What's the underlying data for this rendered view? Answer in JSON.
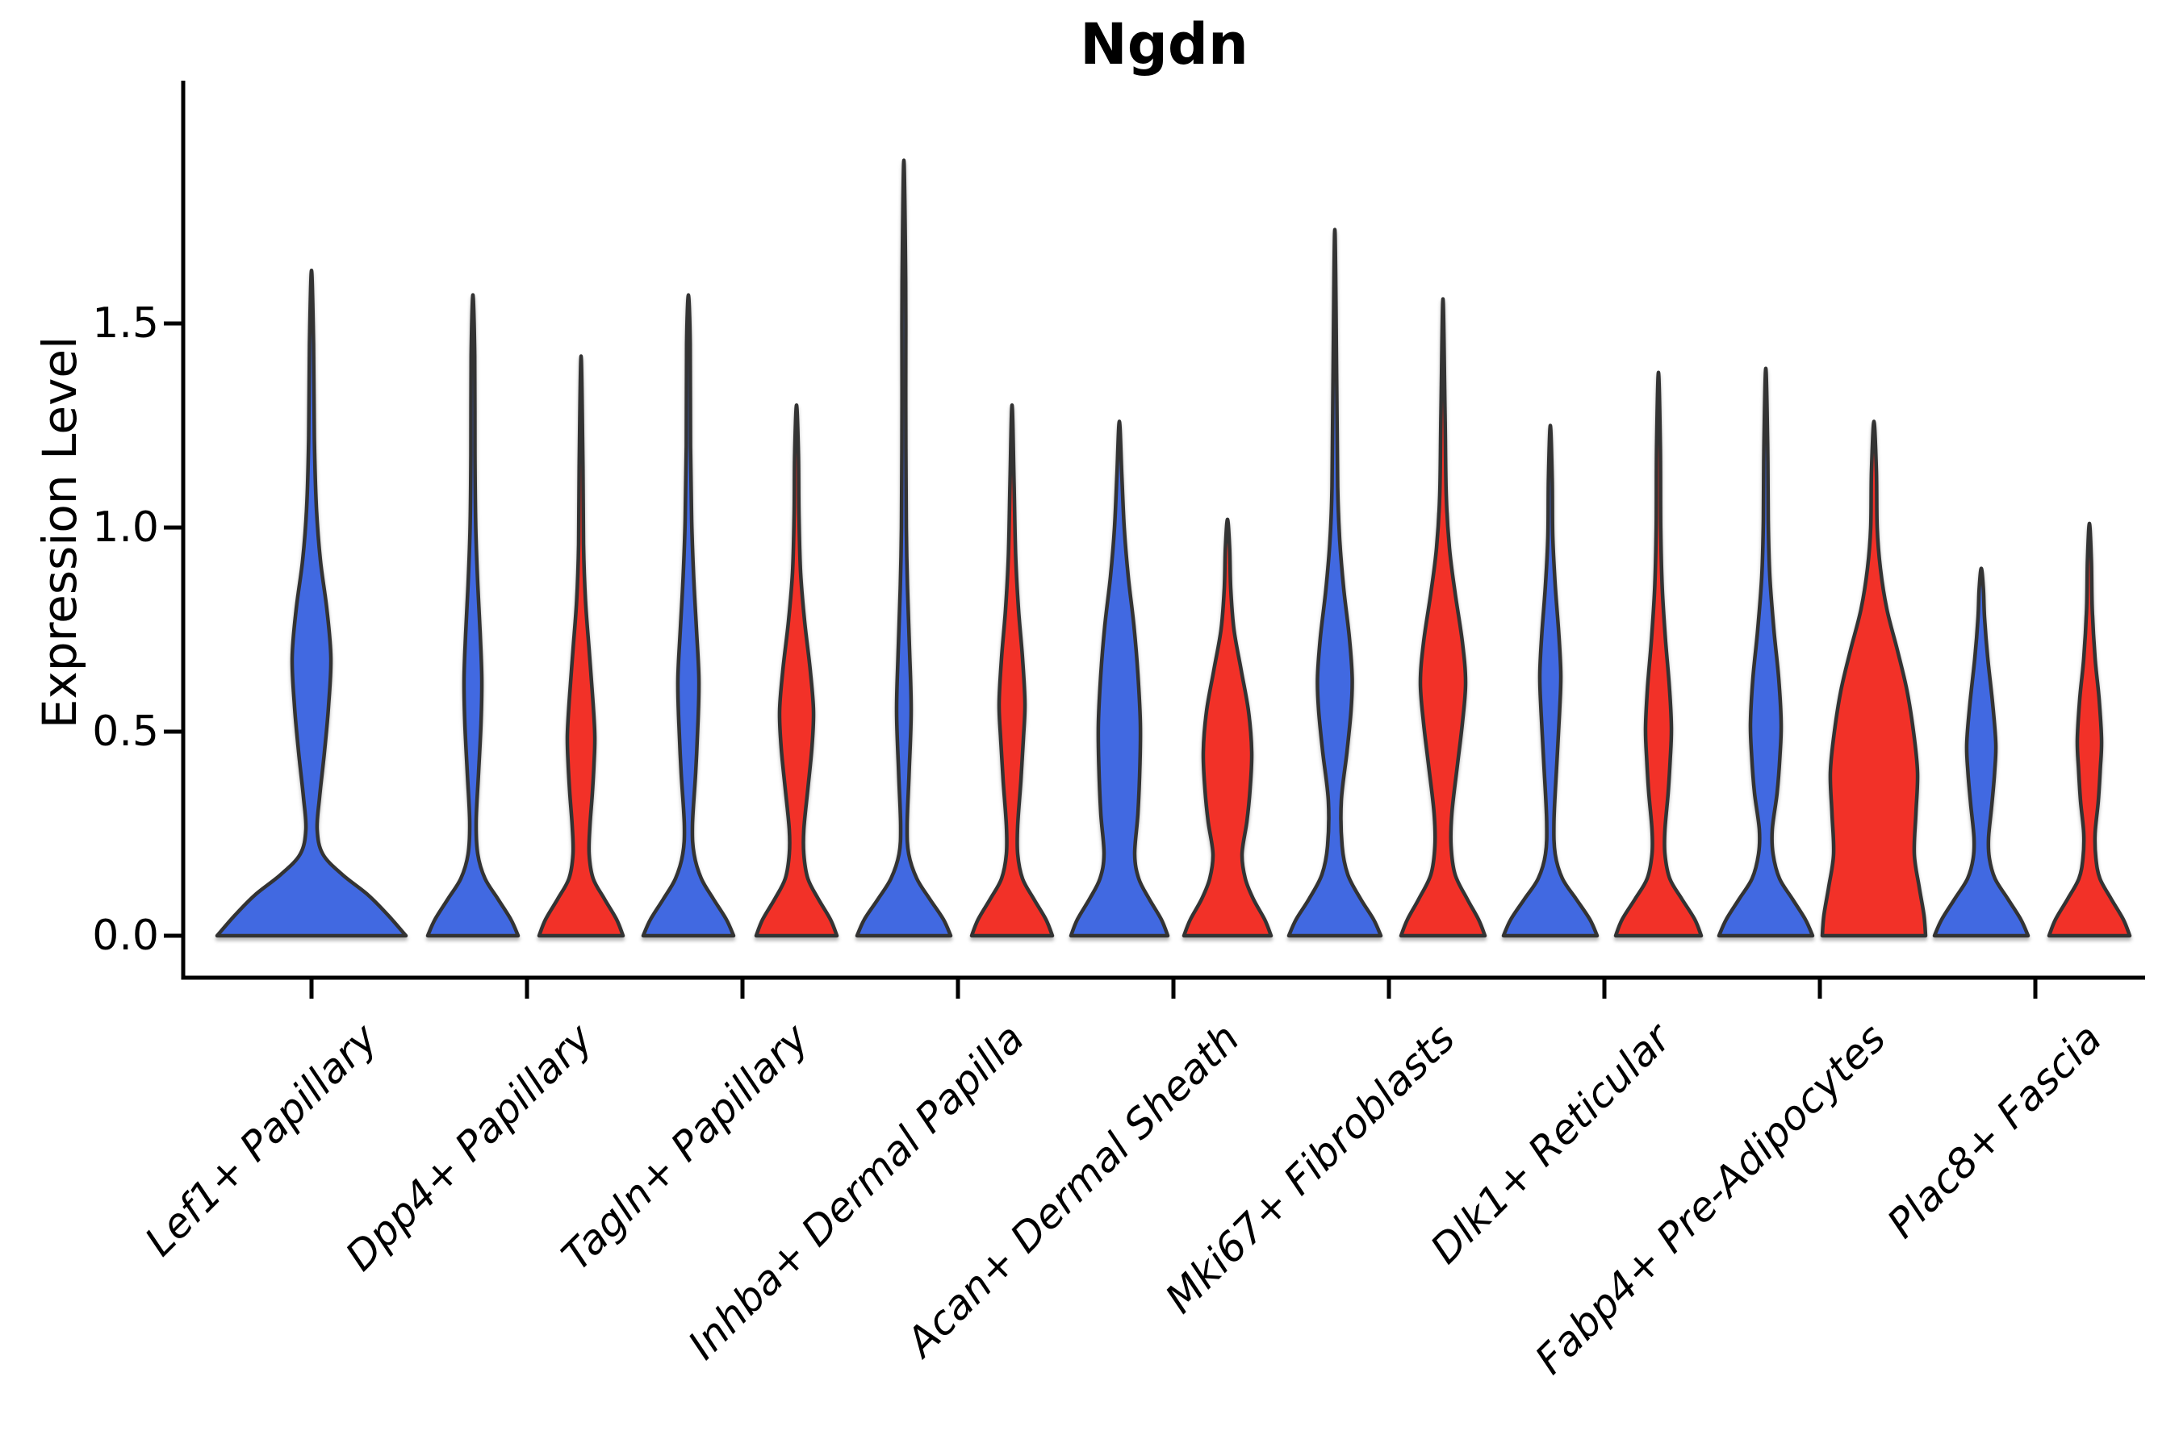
{
  "title": "Ngdn",
  "y_axis": {
    "label": "Expression Level",
    "tick_labels": [
      "0.0",
      "0.5",
      "1.0",
      "1.5"
    ],
    "tick_values": [
      0.0,
      0.5,
      1.0,
      1.5
    ]
  },
  "colors": {
    "blue": "#4169E1",
    "red": "#F23128",
    "outline": "#333333",
    "axis": "#000000",
    "background": "#ffffff"
  },
  "chart_data": {
    "type": "violin",
    "title": "Ngdn",
    "ylabel": "Expression Level",
    "ylim": [
      0,
      2.09
    ],
    "grid": false,
    "legend": "none",
    "categories": [
      "Lef1+ Papillary",
      "Dpp4+ Papillary",
      "Tagln+ Papillary",
      "Inhba+ Dermal Papilla",
      "Acan+ Dermal Sheath",
      "Mki67+ Fibroblasts",
      "Dlk1+ Reticular",
      "Fabp4+ Pre-Adipocytes",
      "Plac8+ Fascia"
    ],
    "series_note": "split violins: blue = left half-slot, red = right half-slot; Lef1+ Papillary has a single full-width blue violin",
    "violins": [
      {
        "cat": 0,
        "category": "Lef1+ Papillary",
        "side": "center",
        "color_key": "blue",
        "max_expression": 1.63,
        "profile": [
          [
            0,
            117
          ],
          [
            0.05,
            95
          ],
          [
            0.1,
            70
          ],
          [
            0.15,
            38
          ],
          [
            0.2,
            14
          ],
          [
            0.26,
            7
          ],
          [
            0.34,
            10
          ],
          [
            0.45,
            16
          ],
          [
            0.56,
            21
          ],
          [
            0.68,
            24
          ],
          [
            0.8,
            19
          ],
          [
            0.92,
            11
          ],
          [
            1.05,
            6
          ],
          [
            1.22,
            3.5
          ],
          [
            1.45,
            2.5
          ],
          [
            1.63,
            0
          ]
        ]
      },
      {
        "cat": 1,
        "category": "Dpp4+ Papillary",
        "side": "blue",
        "color_key": "blue",
        "max_expression": 1.57,
        "profile": [
          [
            0,
            56
          ],
          [
            0.04,
            47
          ],
          [
            0.09,
            31
          ],
          [
            0.14,
            15
          ],
          [
            0.2,
            6
          ],
          [
            0.28,
            4
          ],
          [
            0.4,
            7
          ],
          [
            0.52,
            10
          ],
          [
            0.63,
            11
          ],
          [
            0.74,
            9
          ],
          [
            0.86,
            6
          ],
          [
            1.0,
            3.5
          ],
          [
            1.18,
            2.5
          ],
          [
            1.42,
            2.2
          ],
          [
            1.57,
            0
          ]
        ]
      },
      {
        "cat": 1,
        "category": "Dpp4+ Papillary",
        "side": "red",
        "color_key": "red",
        "max_expression": 1.42,
        "profile": [
          [
            0,
            52
          ],
          [
            0.04,
            44
          ],
          [
            0.09,
            29
          ],
          [
            0.14,
            15
          ],
          [
            0.2,
            10
          ],
          [
            0.27,
            11
          ],
          [
            0.35,
            14
          ],
          [
            0.42,
            16
          ],
          [
            0.49,
            17
          ],
          [
            0.58,
            14.5
          ],
          [
            0.7,
            10
          ],
          [
            0.82,
            5.5
          ],
          [
            0.96,
            3
          ],
          [
            1.15,
            2.3
          ],
          [
            1.42,
            0
          ]
        ]
      },
      {
        "cat": 2,
        "category": "Tagln+ Papillary",
        "side": "blue",
        "color_key": "blue",
        "max_expression": 1.57,
        "profile": [
          [
            0,
            56
          ],
          [
            0.04,
            47
          ],
          [
            0.09,
            31
          ],
          [
            0.14,
            16
          ],
          [
            0.2,
            7
          ],
          [
            0.27,
            5
          ],
          [
            0.4,
            9
          ],
          [
            0.53,
            12
          ],
          [
            0.63,
            13
          ],
          [
            0.75,
            10
          ],
          [
            0.88,
            6.5
          ],
          [
            1.02,
            4
          ],
          [
            1.2,
            2.6
          ],
          [
            1.45,
            2.2
          ],
          [
            1.57,
            0
          ]
        ]
      },
      {
        "cat": 2,
        "category": "Tagln+ Papillary",
        "side": "red",
        "color_key": "red",
        "max_expression": 1.3,
        "profile": [
          [
            0,
            50
          ],
          [
            0.04,
            42
          ],
          [
            0.09,
            27
          ],
          [
            0.14,
            14
          ],
          [
            0.2,
            9
          ],
          [
            0.26,
            9
          ],
          [
            0.36,
            14
          ],
          [
            0.46,
            19
          ],
          [
            0.55,
            21
          ],
          [
            0.65,
            17
          ],
          [
            0.77,
            10
          ],
          [
            0.89,
            5
          ],
          [
            1.03,
            3
          ],
          [
            1.18,
            2.3
          ],
          [
            1.3,
            0
          ]
        ]
      },
      {
        "cat": 3,
        "category": "Inhba+ Dermal Papilla",
        "side": "blue",
        "color_key": "blue",
        "max_expression": 1.9,
        "profile": [
          [
            0,
            58
          ],
          [
            0.04,
            49
          ],
          [
            0.09,
            32
          ],
          [
            0.14,
            16
          ],
          [
            0.2,
            6
          ],
          [
            0.27,
            4
          ],
          [
            0.4,
            6.5
          ],
          [
            0.55,
            9
          ],
          [
            0.7,
            7
          ],
          [
            0.85,
            4.5
          ],
          [
            1.0,
            3
          ],
          [
            1.3,
            2.3
          ],
          [
            1.6,
            2.2
          ],
          [
            1.9,
            0
          ]
        ]
      },
      {
        "cat": 3,
        "category": "Inhba+ Dermal Papilla",
        "side": "red",
        "color_key": "red",
        "max_expression": 1.3,
        "profile": [
          [
            0,
            50
          ],
          [
            0.04,
            42
          ],
          [
            0.09,
            27
          ],
          [
            0.14,
            13
          ],
          [
            0.2,
            7
          ],
          [
            0.27,
            7
          ],
          [
            0.38,
            11
          ],
          [
            0.48,
            14
          ],
          [
            0.57,
            16
          ],
          [
            0.68,
            13
          ],
          [
            0.8,
            8
          ],
          [
            0.93,
            4.5
          ],
          [
            1.1,
            2.6
          ],
          [
            1.3,
            0
          ]
        ]
      },
      {
        "cat": 4,
        "category": "Acan+ Dermal Sheath",
        "side": "blue",
        "color_key": "blue",
        "max_expression": 1.26,
        "profile": [
          [
            0,
            60
          ],
          [
            0.04,
            52
          ],
          [
            0.09,
            37
          ],
          [
            0.14,
            24
          ],
          [
            0.2,
            19
          ],
          [
            0.3,
            23
          ],
          [
            0.42,
            25.5
          ],
          [
            0.52,
            26
          ],
          [
            0.64,
            23
          ],
          [
            0.76,
            18
          ],
          [
            0.88,
            11
          ],
          [
            1.0,
            6
          ],
          [
            1.13,
            3
          ],
          [
            1.26,
            0
          ]
        ]
      },
      {
        "cat": 4,
        "category": "Acan+ Dermal Sheath",
        "side": "red",
        "color_key": "red",
        "max_expression": 1.02,
        "profile": [
          [
            0,
            54
          ],
          [
            0.04,
            46
          ],
          [
            0.09,
            32
          ],
          [
            0.14,
            22
          ],
          [
            0.2,
            18
          ],
          [
            0.28,
            24
          ],
          [
            0.36,
            28
          ],
          [
            0.45,
            30
          ],
          [
            0.55,
            26
          ],
          [
            0.65,
            17
          ],
          [
            0.75,
            8
          ],
          [
            0.85,
            4
          ],
          [
            0.95,
            2.6
          ],
          [
            1.02,
            0
          ]
        ]
      },
      {
        "cat": 5,
        "category": "Mki67+ Fibroblasts",
        "side": "blue",
        "color_key": "blue",
        "max_expression": 1.73,
        "profile": [
          [
            0,
            57
          ],
          [
            0.04,
            48
          ],
          [
            0.09,
            32
          ],
          [
            0.15,
            16
          ],
          [
            0.22,
            9
          ],
          [
            0.33,
            8
          ],
          [
            0.45,
            15
          ],
          [
            0.55,
            20
          ],
          [
            0.63,
            21.5
          ],
          [
            0.73,
            18
          ],
          [
            0.85,
            11
          ],
          [
            0.97,
            6
          ],
          [
            1.1,
            3.5
          ],
          [
            1.35,
            2.3
          ],
          [
            1.73,
            0
          ]
        ]
      },
      {
        "cat": 5,
        "category": "Mki67+ Fibroblasts",
        "side": "red",
        "color_key": "red",
        "max_expression": 1.56,
        "profile": [
          [
            0,
            52
          ],
          [
            0.04,
            44
          ],
          [
            0.09,
            30
          ],
          [
            0.15,
            15
          ],
          [
            0.22,
            10
          ],
          [
            0.3,
            11
          ],
          [
            0.42,
            18
          ],
          [
            0.52,
            24
          ],
          [
            0.62,
            28
          ],
          [
            0.72,
            24
          ],
          [
            0.84,
            15
          ],
          [
            0.95,
            8
          ],
          [
            1.08,
            4
          ],
          [
            1.28,
            2.5
          ],
          [
            1.56,
            0
          ]
        ]
      },
      {
        "cat": 6,
        "category": "Dlk1+ Reticular",
        "side": "blue",
        "color_key": "blue",
        "max_expression": 1.25,
        "profile": [
          [
            0,
            58
          ],
          [
            0.04,
            49
          ],
          [
            0.09,
            32
          ],
          [
            0.14,
            15
          ],
          [
            0.2,
            6
          ],
          [
            0.28,
            4.5
          ],
          [
            0.42,
            8
          ],
          [
            0.55,
            11.5
          ],
          [
            0.64,
            13
          ],
          [
            0.74,
            10.5
          ],
          [
            0.86,
            6
          ],
          [
            0.98,
            3
          ],
          [
            1.12,
            2.3
          ],
          [
            1.25,
            0
          ]
        ]
      },
      {
        "cat": 6,
        "category": "Dlk1+ Reticular",
        "side": "red",
        "color_key": "red",
        "max_expression": 1.38,
        "profile": [
          [
            0,
            53
          ],
          [
            0.04,
            45
          ],
          [
            0.09,
            29
          ],
          [
            0.14,
            14
          ],
          [
            0.2,
            8
          ],
          [
            0.26,
            8
          ],
          [
            0.35,
            12
          ],
          [
            0.43,
            14.5
          ],
          [
            0.51,
            16
          ],
          [
            0.61,
            13.5
          ],
          [
            0.73,
            8.5
          ],
          [
            0.86,
            4.5
          ],
          [
            1.0,
            2.8
          ],
          [
            1.2,
            2.3
          ],
          [
            1.38,
            0
          ]
        ]
      },
      {
        "cat": 7,
        "category": "Fabp4+ Pre-Adipocytes",
        "side": "blue",
        "color_key": "blue",
        "max_expression": 1.39,
        "profile": [
          [
            0,
            58
          ],
          [
            0.04,
            49
          ],
          [
            0.09,
            33
          ],
          [
            0.14,
            17
          ],
          [
            0.2,
            9
          ],
          [
            0.26,
            8
          ],
          [
            0.35,
            14
          ],
          [
            0.44,
            17.5
          ],
          [
            0.52,
            19
          ],
          [
            0.63,
            16
          ],
          [
            0.75,
            10
          ],
          [
            0.88,
            5
          ],
          [
            1.02,
            3
          ],
          [
            1.2,
            2.3
          ],
          [
            1.39,
            0
          ]
        ]
      },
      {
        "cat": 7,
        "category": "Fabp4+ Pre-Adipocytes",
        "side": "red",
        "color_key": "red",
        "max_expression": 1.26,
        "profile": [
          [
            0,
            64
          ],
          [
            0.05,
            62
          ],
          [
            0.12,
            56
          ],
          [
            0.2,
            50
          ],
          [
            0.3,
            52
          ],
          [
            0.4,
            54
          ],
          [
            0.5,
            49
          ],
          [
            0.6,
            41
          ],
          [
            0.7,
            29
          ],
          [
            0.8,
            16
          ],
          [
            0.9,
            8
          ],
          [
            1.0,
            4
          ],
          [
            1.14,
            3
          ],
          [
            1.26,
            0
          ]
        ]
      },
      {
        "cat": 8,
        "category": "Plac8+ Fascia",
        "side": "blue",
        "color_key": "blue",
        "max_expression": 0.9,
        "profile": [
          [
            0,
            58
          ],
          [
            0.04,
            49
          ],
          [
            0.09,
            33
          ],
          [
            0.14,
            17
          ],
          [
            0.19,
            10
          ],
          [
            0.24,
            9
          ],
          [
            0.32,
            13
          ],
          [
            0.4,
            16.5
          ],
          [
            0.47,
            18
          ],
          [
            0.57,
            14
          ],
          [
            0.68,
            8
          ],
          [
            0.78,
            4
          ],
          [
            0.85,
            2.6
          ],
          [
            0.9,
            0
          ]
        ]
      },
      {
        "cat": 8,
        "category": "Plac8+ Fascia",
        "side": "red",
        "color_key": "red",
        "max_expression": 1.01,
        "profile": [
          [
            0,
            50
          ],
          [
            0.04,
            42
          ],
          [
            0.09,
            27
          ],
          [
            0.14,
            13
          ],
          [
            0.19,
            8
          ],
          [
            0.25,
            7
          ],
          [
            0.33,
            11
          ],
          [
            0.41,
            13.5
          ],
          [
            0.48,
            15
          ],
          [
            0.58,
            12
          ],
          [
            0.68,
            7
          ],
          [
            0.8,
            3.5
          ],
          [
            0.92,
            2.4
          ],
          [
            1.01,
            0
          ]
        ]
      }
    ]
  }
}
